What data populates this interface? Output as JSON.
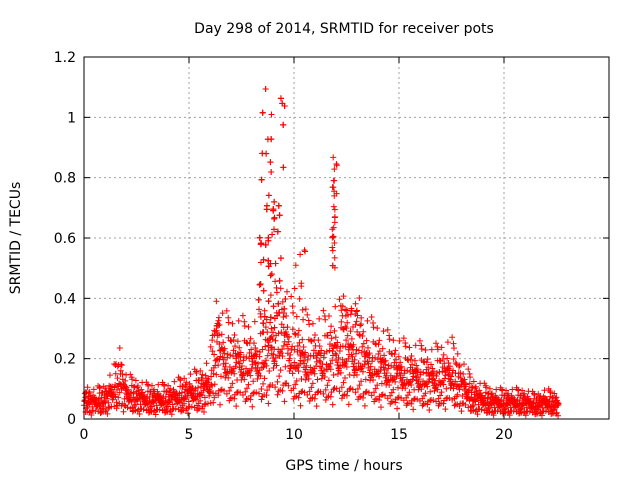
{
  "chart_data": {
    "type": "scatter",
    "title": "Day 298 of 2014, SRMTID for receiver pots",
    "xlabel": "GPS time / hours",
    "ylabel": "SRMTID / TECUs",
    "xlim": [
      0,
      25
    ],
    "ylim": [
      0,
      1.2
    ],
    "x_ticks": [
      "0",
      "5",
      "10",
      "15",
      "20"
    ],
    "x_tick_values": [
      0,
      5,
      10,
      15,
      20
    ],
    "y_ticks": [
      "0",
      "0.2",
      "0.4",
      "0.6",
      "0.8",
      "1",
      "1.2"
    ],
    "y_tick_values": [
      0,
      0.2,
      0.4,
      0.6,
      0.8,
      1.0,
      1.2
    ],
    "grid": true,
    "marker": "plus",
    "color": "#ff0000",
    "series": [
      {
        "name": "SRMTID",
        "profile": [
          [
            0.0,
            0.07
          ],
          [
            0.5,
            0.06
          ],
          [
            1.0,
            0.07
          ],
          [
            1.5,
            0.11
          ],
          [
            1.7,
            0.15
          ],
          [
            2.0,
            0.09
          ],
          [
            2.5,
            0.08
          ],
          [
            3.0,
            0.07
          ],
          [
            3.5,
            0.07
          ],
          [
            4.0,
            0.07
          ],
          [
            4.5,
            0.08
          ],
          [
            5.0,
            0.09
          ],
          [
            5.5,
            0.1
          ],
          [
            6.0,
            0.12
          ],
          [
            6.3,
            0.25
          ],
          [
            6.5,
            0.22
          ],
          [
            7.0,
            0.2
          ],
          [
            7.5,
            0.2
          ],
          [
            8.0,
            0.19
          ],
          [
            8.5,
            0.22
          ],
          [
            9.0,
            0.26
          ],
          [
            9.5,
            0.28
          ],
          [
            10.0,
            0.22
          ],
          [
            10.5,
            0.2
          ],
          [
            11.0,
            0.2
          ],
          [
            11.5,
            0.21
          ],
          [
            12.0,
            0.23
          ],
          [
            12.5,
            0.23
          ],
          [
            13.0,
            0.22
          ],
          [
            13.5,
            0.2
          ],
          [
            14.0,
            0.19
          ],
          [
            14.5,
            0.17
          ],
          [
            15.0,
            0.16
          ],
          [
            15.5,
            0.15
          ],
          [
            16.0,
            0.15
          ],
          [
            16.5,
            0.14
          ],
          [
            17.0,
            0.15
          ],
          [
            17.5,
            0.16
          ],
          [
            18.0,
            0.12
          ],
          [
            18.5,
            0.08
          ],
          [
            19.0,
            0.07
          ],
          [
            19.5,
            0.06
          ],
          [
            20.0,
            0.06
          ],
          [
            20.5,
            0.06
          ],
          [
            21.0,
            0.06
          ],
          [
            21.5,
            0.05
          ],
          [
            22.0,
            0.06
          ],
          [
            22.6,
            0.05
          ]
        ],
        "x_start": 0.0,
        "x_end": 22.6,
        "point_count": 1800,
        "spikes": [
          {
            "x_range": [
              8.3,
              9.6
            ],
            "y_range": [
              0.3,
              1.1
            ],
            "count": 160
          },
          {
            "x_range": [
              11.8,
              12.05
            ],
            "y_range": [
              0.5,
              0.87
            ],
            "count": 28
          },
          {
            "x_range": [
              12.2,
              13.2
            ],
            "y_range": [
              0.3,
              0.42
            ],
            "count": 20
          },
          {
            "x_range": [
              6.2,
              6.5
            ],
            "y_range": [
              0.28,
              0.39
            ],
            "count": 8
          },
          {
            "x_range": [
              10.0,
              10.6
            ],
            "y_range": [
              0.35,
              0.57
            ],
            "count": 10
          }
        ]
      }
    ]
  }
}
